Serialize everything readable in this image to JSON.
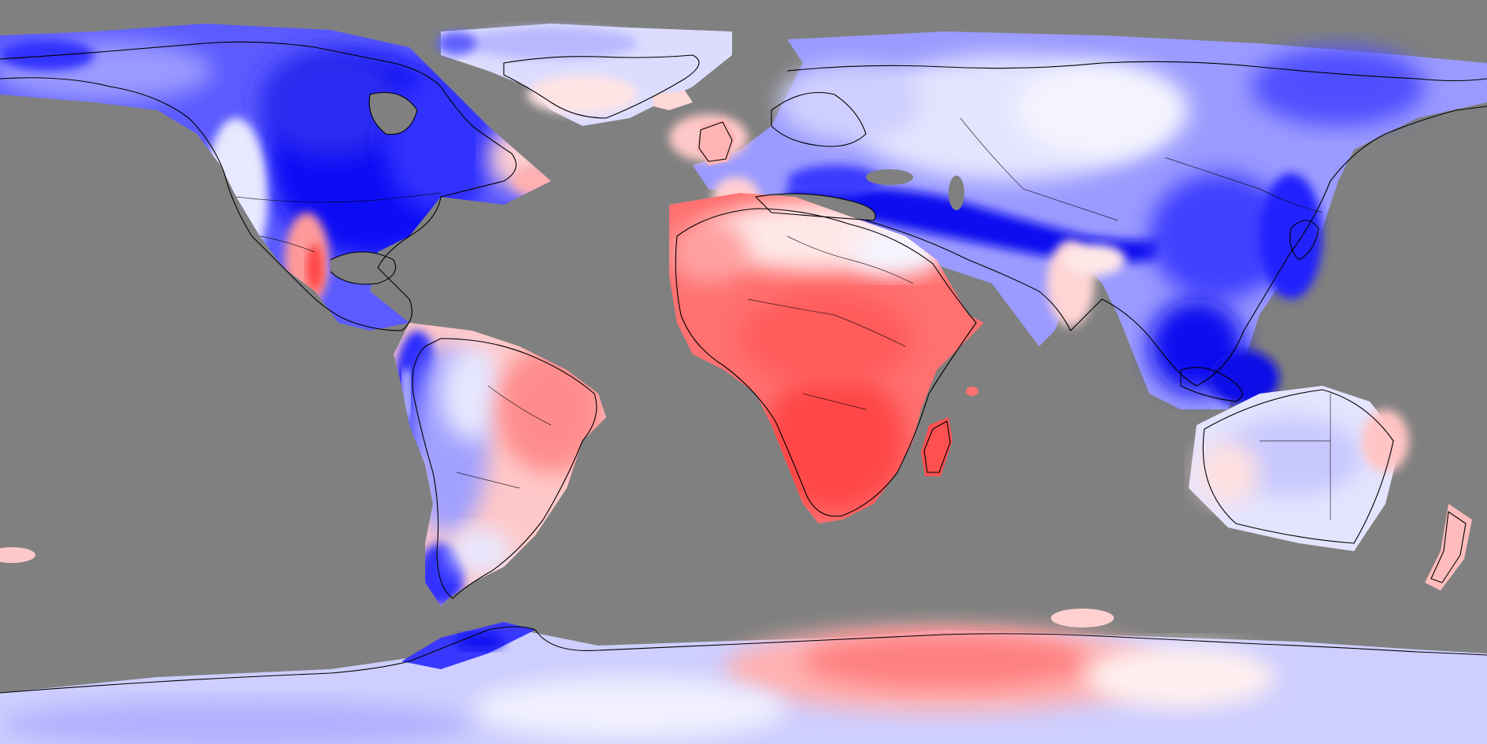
{
  "map": {
    "projection": "equirectangular",
    "ocean_color": "#808080",
    "coastline_color": "#000000",
    "color_scale": {
      "type": "diverging",
      "negative_color": "#0000ff",
      "neutral_color": "#ffffff",
      "positive_color": "#ff3c3c"
    },
    "regions": [
      {
        "name": "north-america",
        "value": -0.8
      },
      {
        "name": "greenland",
        "value": -0.2
      },
      {
        "name": "south-america",
        "value": -0.4
      },
      {
        "name": "europe",
        "value": -0.3
      },
      {
        "name": "asia",
        "value": -0.6
      },
      {
        "name": "africa",
        "value": 0.8
      },
      {
        "name": "australia",
        "value": -0.15
      },
      {
        "name": "antarctica",
        "value": 0.3
      }
    ]
  }
}
